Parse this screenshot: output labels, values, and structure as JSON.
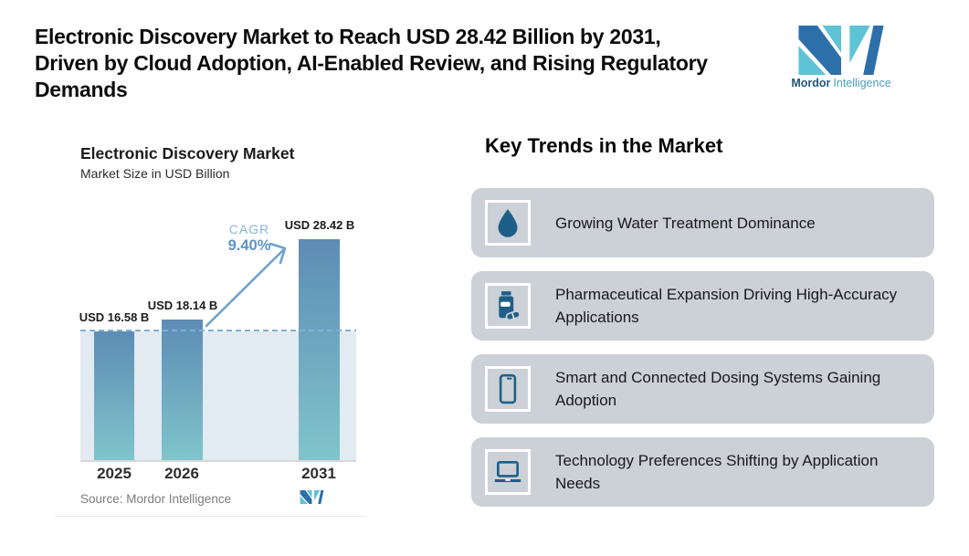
{
  "page": {
    "title_lines": [
      "Electronic Discovery Market to Reach USD 28.42 Billion by 2031,",
      "Driven by Cloud Adoption, AI-Enabled Review, and Rising Regulatory",
      "Demands"
    ]
  },
  "logo": {
    "brand_bold": "Mordor",
    "brand_light": "Intelligence",
    "colors": {
      "teal": "#5ec3d5",
      "blue": "#2d6fa9",
      "text_bold": "#26567f",
      "text_light": "#4d9ec0"
    }
  },
  "chart_data": {
    "type": "bar",
    "title": "Electronic Discovery Market",
    "subtitle": "Market Size in USD Billion",
    "categories": [
      "2025",
      "2026",
      "2031"
    ],
    "values": [
      16.58,
      18.14,
      28.42
    ],
    "bar_labels": [
      "USD 16.58 B",
      "USD 18.14 B",
      "USD 28.42 B"
    ],
    "annotation": {
      "label": "CAGR",
      "value": "9.40%"
    },
    "reference_line": 16.58,
    "ylim": [
      0,
      30
    ],
    "grid": false,
    "legend": false,
    "source": "Source: Mordor Intelligence",
    "colors": {
      "bar_top": "#5d8cb5",
      "bar_bottom": "#80c5cb",
      "band": "#e2eaf2",
      "dashed_line": "#7fafd6",
      "arrow": "#6fa2ce",
      "cagr_label": "#8ab6da",
      "cagr_value": "#5d94c7",
      "axis": "#d8d8d8"
    }
  },
  "trends": {
    "heading": "Key Trends in the Market",
    "colors": {
      "card_bg": "#ccd1d7",
      "icon_color": "#1e5f87"
    },
    "items": [
      {
        "icon": "water-drop-icon",
        "text": "Growing Water Treatment Dominance"
      },
      {
        "icon": "pill-bottle-icon",
        "text": "Pharmaceutical Expansion Driving High-Accuracy Applications"
      },
      {
        "icon": "smartphone-icon",
        "text": "Smart and Connected Dosing Systems Gaining Adoption"
      },
      {
        "icon": "laptop-icon",
        "text": "Technology Preferences Shifting by Application Needs"
      }
    ]
  }
}
